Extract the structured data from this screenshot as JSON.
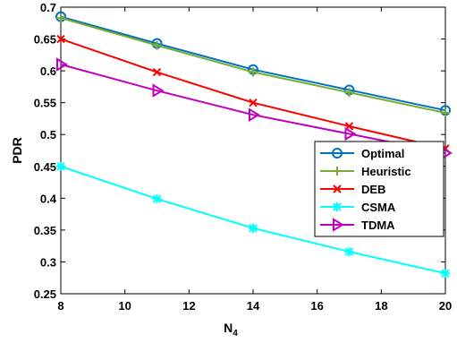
{
  "chart_data": {
    "type": "line",
    "xlabel": "N",
    "xlabel_sub": "4",
    "ylabel": "PDR",
    "xlim": [
      8,
      20
    ],
    "ylim": [
      0.25,
      0.7
    ],
    "xticks": [
      8,
      10,
      12,
      14,
      16,
      18,
      20
    ],
    "xtick_labels": [
      "8",
      "10",
      "12",
      "14",
      "16",
      "18",
      "20"
    ],
    "yticks": [
      0.25,
      0.3,
      0.35,
      0.4,
      0.45,
      0.5,
      0.55,
      0.6,
      0.65,
      0.7
    ],
    "ytick_labels": [
      "0.25",
      "0.3",
      "0.35",
      "0.4",
      "0.45",
      "0.5",
      "0.55",
      "0.6",
      "0.65",
      "0.7"
    ],
    "grid": false,
    "legend_position": "right",
    "x": [
      8,
      11,
      14,
      17,
      20
    ],
    "series": [
      {
        "name": "Optimal",
        "values": [
          0.685,
          0.643,
          0.602,
          0.57,
          0.538
        ],
        "color": "#0072BD",
        "marker": "circle"
      },
      {
        "name": "Heuristic",
        "values": [
          0.683,
          0.64,
          0.598,
          0.566,
          0.534
        ],
        "color": "#77AC30",
        "marker": "plus"
      },
      {
        "name": "DEB",
        "values": [
          0.65,
          0.598,
          0.55,
          0.513,
          0.478
        ],
        "color": "#FF0000",
        "marker": "x"
      },
      {
        "name": "CSMA",
        "values": [
          0.45,
          0.399,
          0.353,
          0.316,
          0.282
        ],
        "color": "#00FFFF",
        "marker": "star"
      },
      {
        "name": "TDMA",
        "values": [
          0.61,
          0.569,
          0.531,
          0.501,
          0.471
        ],
        "color": "#BF00BF",
        "marker": "triangle-right"
      }
    ]
  }
}
